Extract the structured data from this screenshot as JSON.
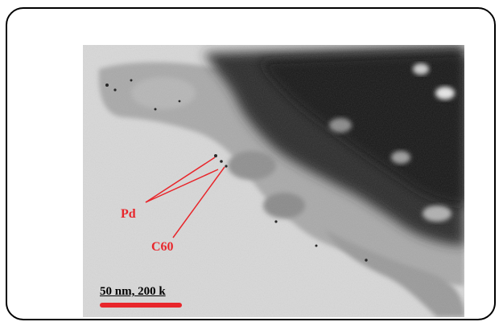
{
  "figure": {
    "annotations": [
      {
        "label": "Pd"
      },
      {
        "label": "C60"
      }
    ],
    "scale_bar": {
      "text": "50 nm, 200 k"
    },
    "colors": {
      "annotation": "#e8262b",
      "scale_bar": "#e8262b",
      "frame_border": "#000000",
      "background": "#d6d6d6",
      "dark_region": "#1c1c1c"
    }
  }
}
